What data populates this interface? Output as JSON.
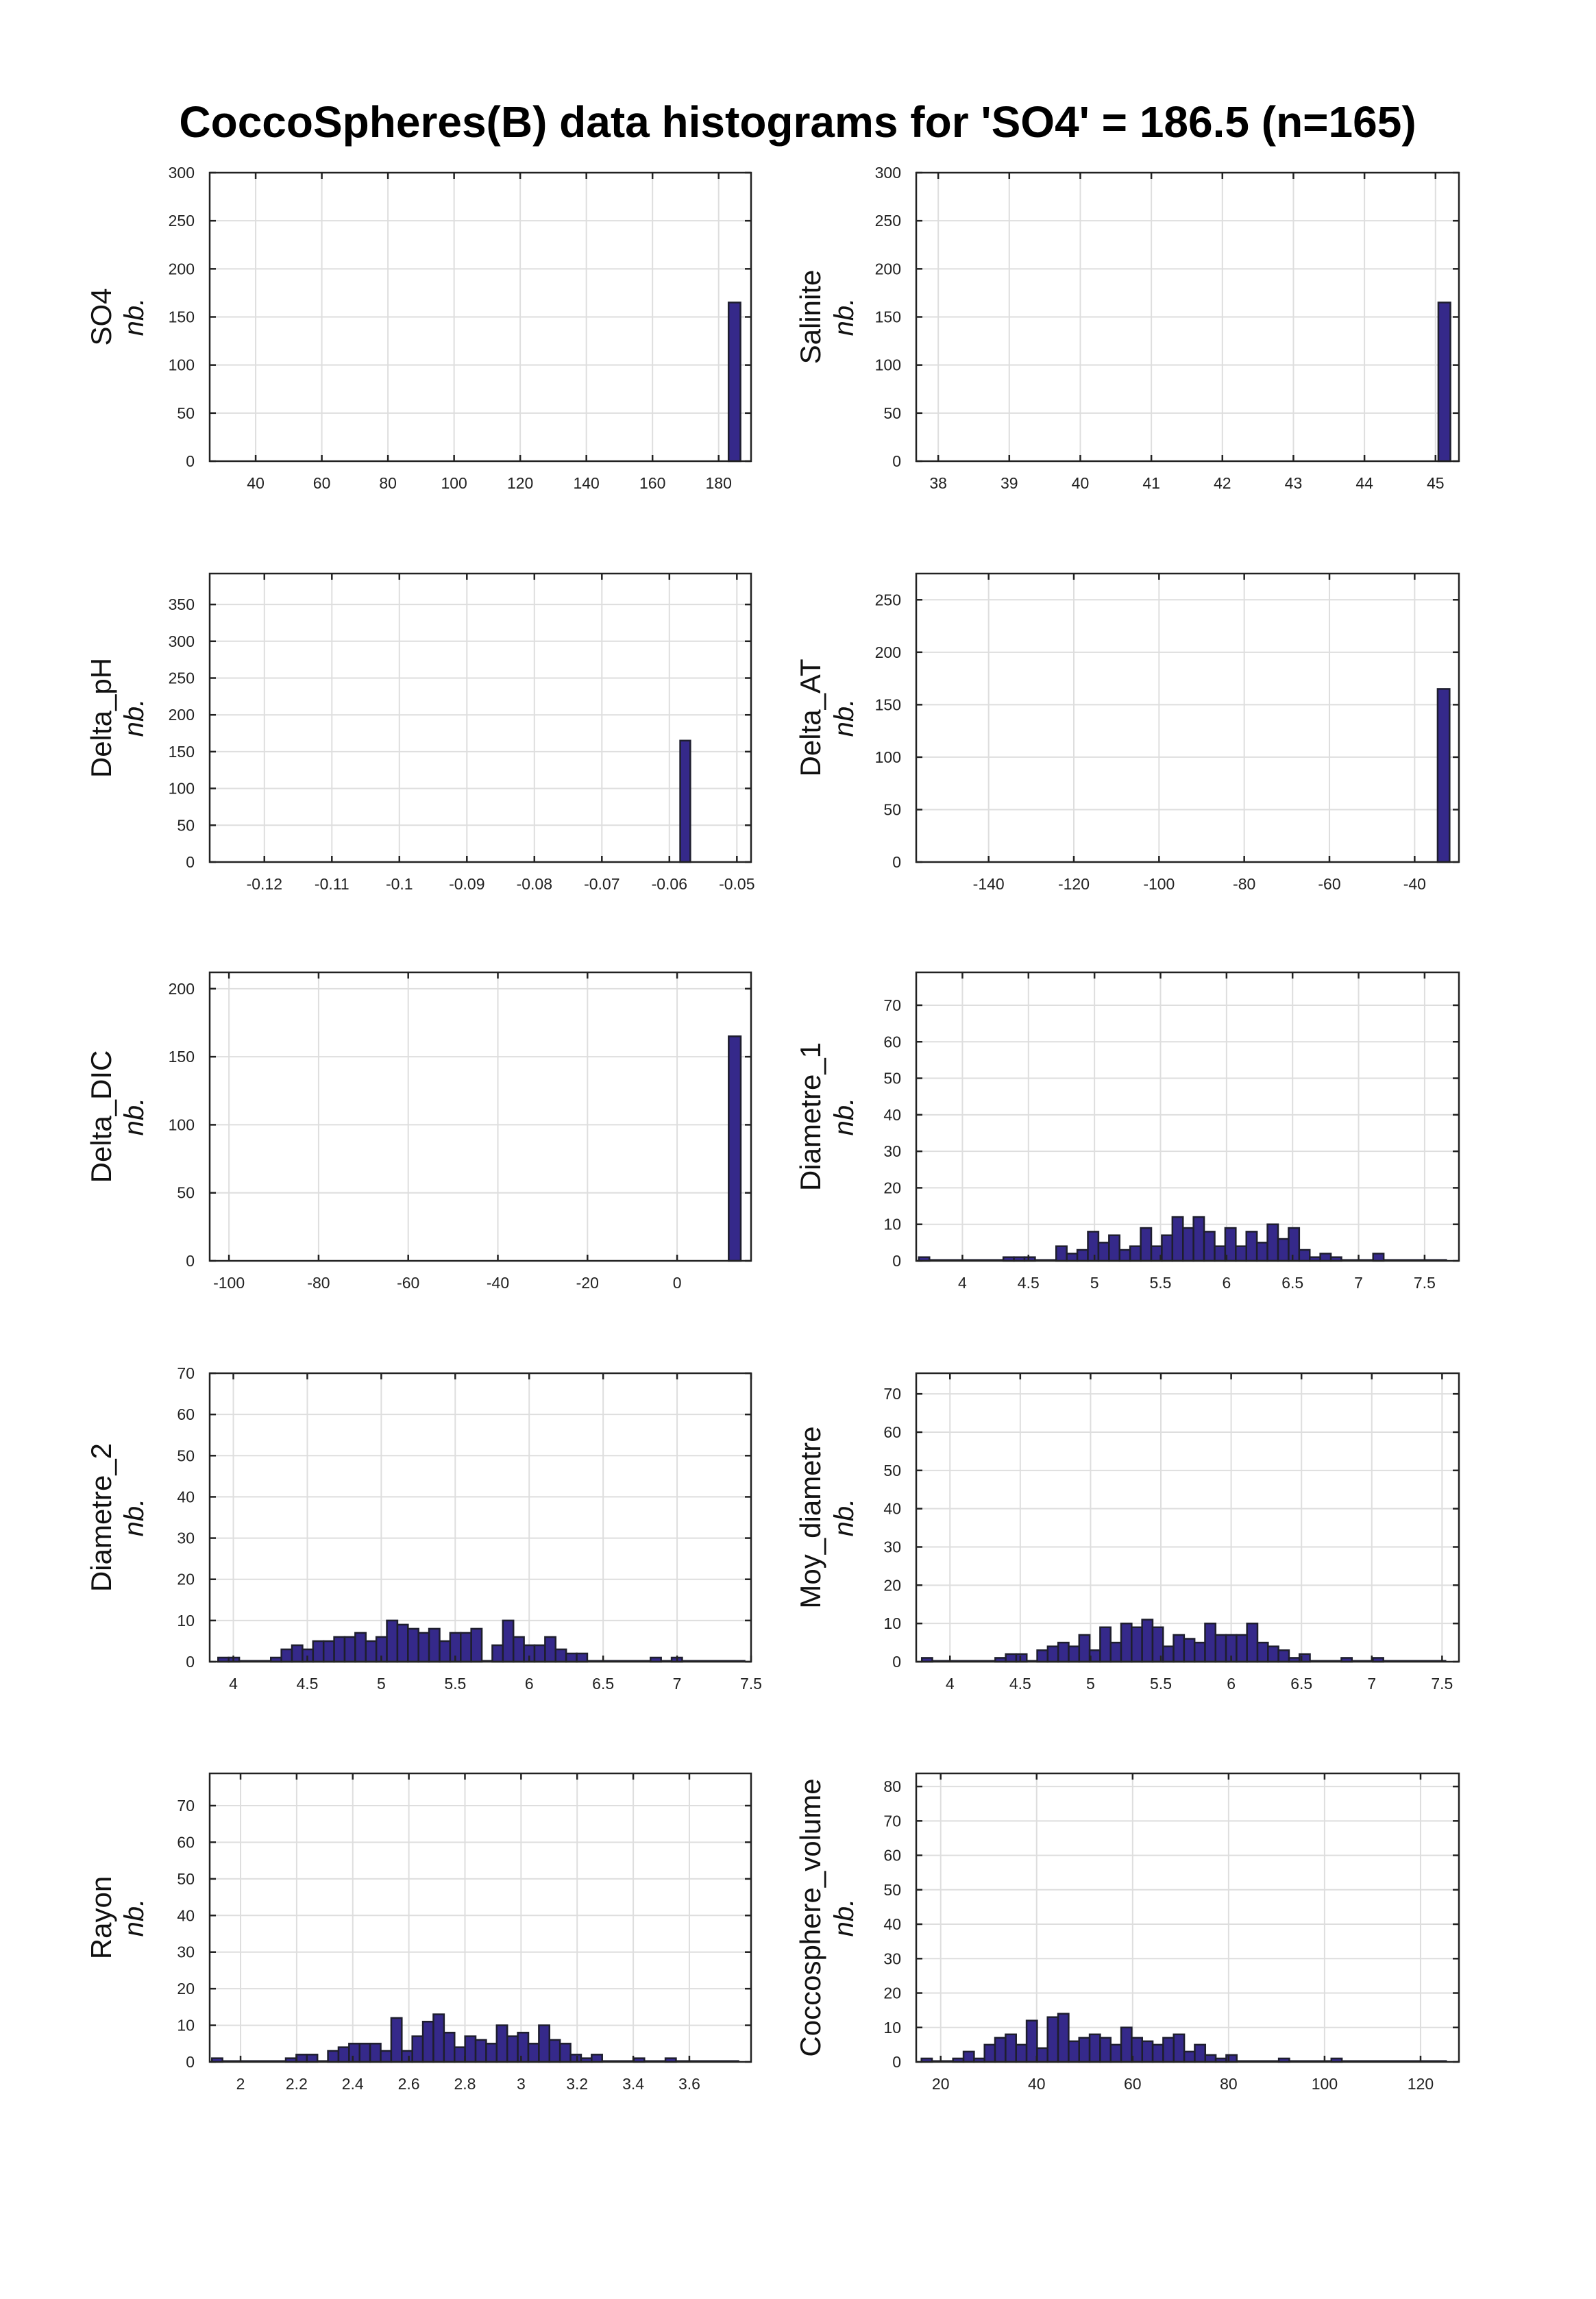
{
  "title": "CoccoSpheres(B) data histograms for 'SO4' = 186.5 (n=165)",
  "ylabel_unit": "nb.",
  "colors": {
    "bar": "#35298a",
    "edge": "#1e1e2e",
    "grid": "#dedede",
    "axis": "#222222"
  },
  "chart_data": [
    {
      "type": "bar",
      "variable": "SO4",
      "ylabel": "nb.",
      "xlim": [
        26.1,
        189.8
      ],
      "ylim": [
        0,
        300
      ],
      "xticks": [
        40,
        60,
        80,
        100,
        120,
        140,
        160,
        180
      ],
      "yticks": [
        0,
        50,
        100,
        150,
        200,
        250,
        300
      ],
      "bin_start": 183.0,
      "bin_width": 3.6,
      "counts": [
        165
      ]
    },
    {
      "type": "bar",
      "variable": "Salinite",
      "ylabel": "nb.",
      "xlim": [
        37.69,
        45.33
      ],
      "ylim": [
        0,
        300
      ],
      "xticks": [
        38,
        39,
        40,
        41,
        42,
        43,
        44,
        45
      ],
      "yticks": [
        0,
        50,
        100,
        150,
        200,
        250,
        300
      ],
      "bin_start": 45.04,
      "bin_width": 0.17,
      "counts": [
        165
      ]
    },
    {
      "type": "bar",
      "variable": "Delta_pH",
      "ylabel": "nb.",
      "xlim": [
        -0.1281,
        -0.0479
      ],
      "ylim": [
        0,
        392
      ],
      "xticks": [
        -0.12,
        -0.11,
        -0.1,
        -0.09,
        -0.08,
        -0.07,
        -0.06,
        -0.05
      ],
      "yticks": [
        0,
        50,
        100,
        150,
        200,
        250,
        300,
        350
      ],
      "bin_start": -0.0584,
      "bin_width": 0.0015,
      "counts": [
        165
      ]
    },
    {
      "type": "bar",
      "variable": "Delta_AT",
      "ylabel": "nb.",
      "xlim": [
        -157,
        -29.6
      ],
      "ylim": [
        0,
        275
      ],
      "xticks": [
        -140,
        -120,
        -100,
        -80,
        -60,
        -40
      ],
      "yticks": [
        0,
        50,
        100,
        150,
        200,
        250
      ],
      "bin_start": -34.6,
      "bin_width": 2.8,
      "counts": [
        165
      ]
    },
    {
      "type": "bar",
      "variable": "Delta_DIC",
      "ylabel": "nb.",
      "xlim": [
        -104.3,
        16.5
      ],
      "ylim": [
        0,
        212
      ],
      "xticks": [
        -100,
        -80,
        -60,
        -40,
        -20,
        0
      ],
      "yticks": [
        0,
        50,
        100,
        150,
        200
      ],
      "bin_start": 11.5,
      "bin_width": 2.7,
      "counts": [
        165
      ]
    },
    {
      "type": "bar",
      "variable": "Diametre_1",
      "ylabel": "nb.",
      "xlim": [
        3.65,
        7.76
      ],
      "ylim": [
        0,
        79
      ],
      "xticks": [
        4,
        4.5,
        5,
        5.5,
        6,
        6.5,
        7,
        7.5
      ],
      "yticks": [
        0,
        10,
        20,
        30,
        40,
        50,
        60,
        70
      ],
      "bin_start": 3.67,
      "bin_width": 0.08,
      "counts": [
        1,
        0,
        0,
        0,
        0,
        0,
        0,
        0,
        1,
        1,
        1,
        0,
        0,
        4,
        2,
        3,
        8,
        5,
        7,
        3,
        4,
        9,
        4,
        7,
        12,
        9,
        12,
        8,
        4,
        9,
        4,
        8,
        5,
        10,
        6,
        9,
        3,
        1,
        2,
        1,
        0,
        0,
        0,
        2,
        0,
        0,
        0,
        0,
        0,
        0
      ]
    },
    {
      "type": "bar",
      "variable": "Diametre_2",
      "ylabel": "nb.",
      "xlim": [
        3.84,
        7.5
      ],
      "ylim": [
        0,
        70
      ],
      "xticks": [
        4,
        4.5,
        5,
        5.5,
        6,
        6.5,
        7,
        7.5
      ],
      "yticks": [
        0,
        10,
        20,
        30,
        40,
        50,
        60,
        70
      ],
      "bin_start": 3.897,
      "bin_width": 0.0713,
      "counts": [
        1,
        1,
        0,
        0,
        0,
        1,
        3,
        4,
        3,
        5,
        5,
        6,
        6,
        7,
        5,
        6,
        10,
        9,
        8,
        7,
        8,
        5,
        7,
        7,
        8,
        0,
        4,
        10,
        6,
        4,
        4,
        6,
        3,
        2,
        2,
        0,
        0,
        0,
        0,
        0,
        0,
        1,
        0,
        1,
        0,
        0,
        0,
        0,
        0,
        0
      ]
    },
    {
      "type": "bar",
      "variable": "Moy_diametre",
      "ylabel": "nb.",
      "xlim": [
        3.76,
        7.62
      ],
      "ylim": [
        0,
        75.4
      ],
      "xticks": [
        4,
        4.5,
        5,
        5.5,
        6,
        6.5,
        7,
        7.5
      ],
      "yticks": [
        0,
        10,
        20,
        30,
        40,
        50,
        60,
        70
      ],
      "bin_start": 3.8,
      "bin_width": 0.0746,
      "counts": [
        1,
        0,
        0,
        0,
        0,
        0,
        0,
        1,
        2,
        2,
        0,
        3,
        4,
        5,
        4,
        7,
        3,
        9,
        5,
        10,
        9,
        11,
        9,
        4,
        7,
        6,
        5,
        10,
        7,
        7,
        7,
        10,
        5,
        4,
        3,
        1,
        2,
        0,
        0,
        0,
        1,
        0,
        0,
        1,
        0,
        0,
        0,
        0,
        0,
        0
      ]
    },
    {
      "type": "bar",
      "variable": "Rayon",
      "ylabel": "nb.",
      "xlim": [
        1.89,
        3.82
      ],
      "ylim": [
        0,
        78.8
      ],
      "xticks": [
        2,
        2.2,
        2.4,
        2.6,
        2.8,
        3,
        3.2,
        3.4,
        3.6
      ],
      "yticks": [
        0,
        10,
        20,
        30,
        40,
        50,
        60,
        70
      ],
      "bin_start": 1.898,
      "bin_width": 0.0376,
      "counts": [
        1,
        0,
        0,
        0,
        0,
        0,
        0,
        1,
        2,
        2,
        0,
        3,
        4,
        5,
        5,
        5,
        3,
        12,
        3,
        7,
        11,
        13,
        8,
        4,
        7,
        6,
        5,
        10,
        7,
        8,
        5,
        10,
        6,
        5,
        2,
        1,
        2,
        0,
        0,
        0,
        1,
        0,
        0,
        1,
        0,
        0,
        0,
        0,
        0,
        0
      ]
    },
    {
      "type": "bar",
      "variable": "Coccosphere_volume",
      "ylabel": "nb.",
      "xlim": [
        14.9,
        128
      ],
      "ylim": [
        0,
        83.8
      ],
      "xticks": [
        20,
        40,
        60,
        80,
        100,
        120
      ],
      "yticks": [
        0,
        10,
        20,
        30,
        40,
        50,
        60,
        70,
        80
      ],
      "bin_start": 16.0,
      "bin_width": 2.19,
      "counts": [
        1,
        0,
        0,
        1,
        3,
        1,
        5,
        7,
        8,
        5,
        12,
        4,
        13,
        14,
        6,
        7,
        8,
        7,
        5,
        10,
        7,
        6,
        5,
        7,
        8,
        3,
        5,
        2,
        1,
        2,
        0,
        0,
        0,
        0,
        1,
        0,
        0,
        0,
        0,
        1,
        0,
        0,
        0,
        0,
        0,
        0,
        0,
        0,
        0,
        0
      ]
    }
  ]
}
